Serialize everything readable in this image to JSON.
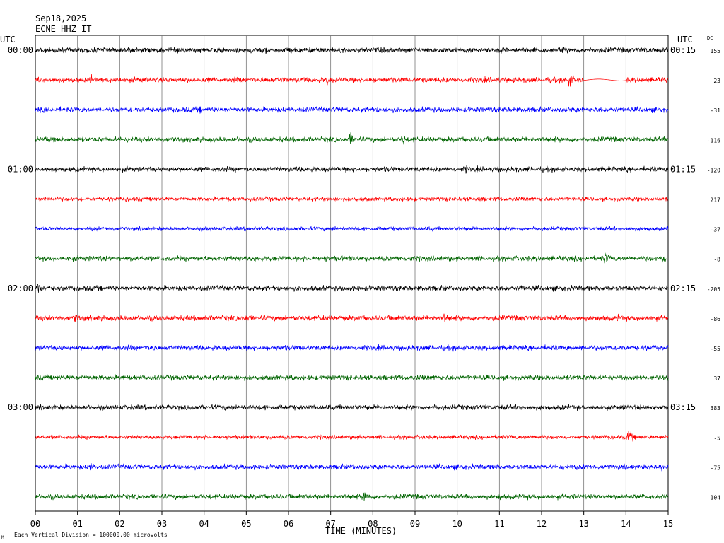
{
  "header": {
    "date": "Sep18,2025",
    "station": "ECNE HHZ IT",
    "left_axis_label": "UTC",
    "right_axis_label": "UTC",
    "dc_label": "DC"
  },
  "footer": {
    "xlabel": "TIME (MINUTES)",
    "scale_note": "Each Vertical Division = 100000.00 microvolts",
    "corner_mark": "M"
  },
  "chart_data": {
    "type": "line",
    "xlabel": "TIME (MINUTES)",
    "xlim": [
      0,
      15
    ],
    "x_ticks": [
      "00",
      "01",
      "02",
      "03",
      "04",
      "05",
      "06",
      "07",
      "08",
      "09",
      "10",
      "11",
      "12",
      "13",
      "14",
      "15"
    ],
    "grid": true,
    "trace_colors": [
      "#000000",
      "#ff0000",
      "#0000ff",
      "#006400"
    ],
    "left_time_labels": [
      {
        "row": 0,
        "text": "00:00"
      },
      {
        "row": 4,
        "text": "01:00"
      },
      {
        "row": 8,
        "text": "02:00"
      },
      {
        "row": 12,
        "text": "03:00"
      }
    ],
    "right_time_labels": [
      {
        "row": 0,
        "text": "00:15"
      },
      {
        "row": 4,
        "text": "01:15"
      },
      {
        "row": 8,
        "text": "02:15"
      },
      {
        "row": 12,
        "text": "03:15"
      }
    ],
    "dc_offsets": [
      "155",
      "23",
      "-31",
      "-116",
      "-120",
      "217",
      "-37",
      "-8",
      "-205",
      "-86",
      "-55",
      "37",
      "383",
      "-5",
      "-75",
      "104"
    ],
    "series": [
      {
        "row": 0,
        "amplitude": 5,
        "events": [
          {
            "t": 2.0,
            "a": 9
          },
          {
            "t": 5.45,
            "a": 11
          }
        ]
      },
      {
        "row": 1,
        "amplitude": 5,
        "events": [
          {
            "t": 1.3,
            "a": 12
          },
          {
            "t": 5.0,
            "a": 9
          },
          {
            "t": 6.9,
            "a": 12
          },
          {
            "t": 12.65,
            "a": 18
          }
        ],
        "gaps": [
          [
            13.0,
            14.0
          ]
        ]
      },
      {
        "row": 2,
        "amplitude": 5,
        "events": [
          {
            "t": 3.9,
            "a": 8
          },
          {
            "t": 8.1,
            "a": 8
          },
          {
            "t": 11.6,
            "a": 7
          }
        ]
      },
      {
        "row": 3,
        "amplitude": 5,
        "events": [
          {
            "t": 4.8,
            "a": 8
          },
          {
            "t": 7.45,
            "a": 16
          },
          {
            "t": 8.7,
            "a": 14
          }
        ]
      },
      {
        "row": 4,
        "amplitude": 5,
        "events": [
          {
            "t": 10.2,
            "a": 10
          }
        ]
      },
      {
        "row": 5,
        "amplitude": 4,
        "events": [
          {
            "t": 2.15,
            "a": 7
          },
          {
            "t": 10.5,
            "a": 6
          }
        ]
      },
      {
        "row": 6,
        "amplitude": 4,
        "events": [
          {
            "t": 4.0,
            "a": 7
          },
          {
            "t": 7.05,
            "a": 8
          }
        ]
      },
      {
        "row": 7,
        "amplitude": 5,
        "events": [
          {
            "t": 5.2,
            "a": 8
          },
          {
            "t": 6.85,
            "a": 10
          },
          {
            "t": 13.5,
            "a": 14
          },
          {
            "t": 14.85,
            "a": 14
          }
        ]
      },
      {
        "row": 8,
        "amplitude": 5,
        "events": [
          {
            "t": 0.05,
            "a": 16
          },
          {
            "t": 11.5,
            "a": 10
          }
        ]
      },
      {
        "row": 9,
        "amplitude": 5,
        "events": [
          {
            "t": 0.95,
            "a": 12
          },
          {
            "t": 5.0,
            "a": 10
          },
          {
            "t": 9.7,
            "a": 14
          },
          {
            "t": 13.8,
            "a": 8
          }
        ]
      },
      {
        "row": 10,
        "amplitude": 5,
        "events": [
          {
            "t": 2.75,
            "a": 12
          },
          {
            "t": 12.95,
            "a": 8
          }
        ]
      },
      {
        "row": 11,
        "amplitude": 5,
        "events": [
          {
            "t": 12.7,
            "a": 7
          }
        ]
      },
      {
        "row": 12,
        "amplitude": 5,
        "events": [
          {
            "t": 3.2,
            "a": 7
          }
        ]
      },
      {
        "row": 13,
        "amplitude": 4,
        "events": [
          {
            "t": 14.05,
            "a": 20
          }
        ]
      },
      {
        "row": 14,
        "amplitude": 5,
        "events": [
          {
            "t": 1.3,
            "a": 10
          },
          {
            "t": 6.5,
            "a": 7
          },
          {
            "t": 14.85,
            "a": 10
          }
        ]
      },
      {
        "row": 15,
        "amplitude": 5,
        "events": [
          {
            "t": 1.5,
            "a": 9
          },
          {
            "t": 7.8,
            "a": 16
          },
          {
            "t": 11.0,
            "a": 8
          }
        ]
      }
    ]
  }
}
